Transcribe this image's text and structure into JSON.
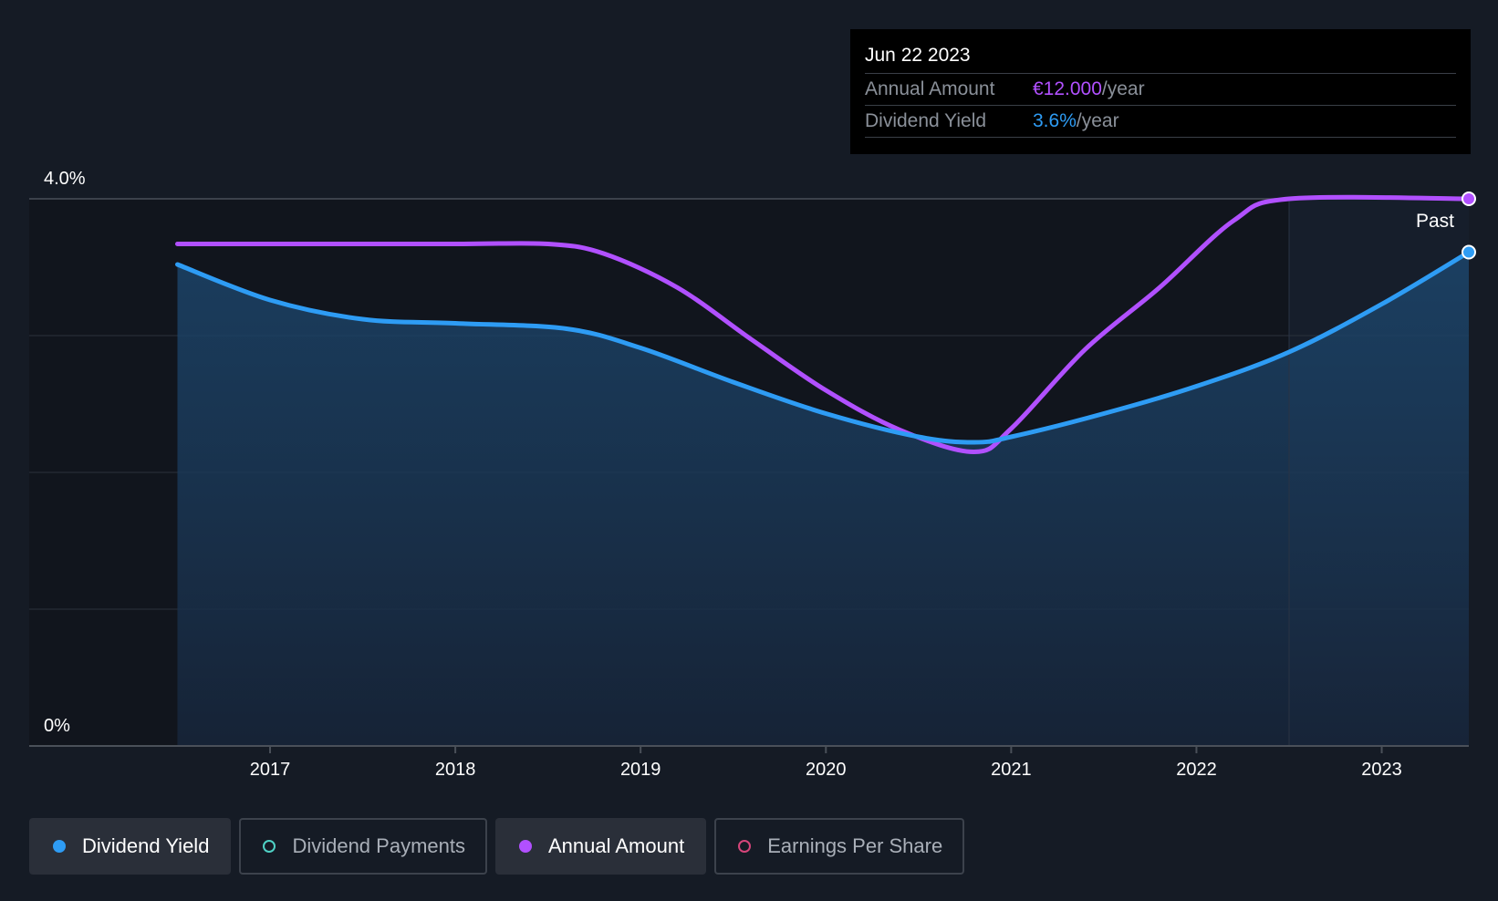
{
  "tooltip": {
    "date": "Jun 22 2023",
    "annual_label": "Annual Amount",
    "annual_value": "€12.000",
    "annual_unit": "/year",
    "yield_label": "Dividend Yield",
    "yield_value": "3.6%",
    "yield_unit": "/year"
  },
  "legend": [
    {
      "label": "Dividend Yield",
      "color": "#2e9cf4",
      "active": true,
      "filled": true
    },
    {
      "label": "Dividend Payments",
      "color": "#4fd1c5",
      "active": false,
      "filled": false
    },
    {
      "label": "Annual Amount",
      "color": "#b150ff",
      "active": true,
      "filled": true
    },
    {
      "label": "Earnings Per Share",
      "color": "#d6457a",
      "active": false,
      "filled": false
    }
  ],
  "chart_data": {
    "type": "line",
    "y_tick_labels": [
      "4.0%",
      "0%"
    ],
    "ylim": [
      0,
      4.0
    ],
    "xlim": [
      2015.7,
      2023.47
    ],
    "x_tick_labels": [
      "2017",
      "2018",
      "2019",
      "2020",
      "2021",
      "2022",
      "2023"
    ],
    "past_label": "Past",
    "grid": true,
    "series": [
      {
        "name": "Dividend Yield",
        "color": "#2e9cf4",
        "x": [
          2016.5,
          2017.0,
          2017.5,
          2018.0,
          2018.6,
          2019.0,
          2019.5,
          2020.0,
          2020.5,
          2020.8,
          2021.0,
          2021.5,
          2022.0,
          2022.5,
          2023.0,
          2023.47
        ],
        "y": [
          3.52,
          3.26,
          3.12,
          3.09,
          3.05,
          2.91,
          2.66,
          2.43,
          2.26,
          2.22,
          2.26,
          2.43,
          2.63,
          2.88,
          3.23,
          3.61
        ]
      },
      {
        "name": "Annual Amount",
        "color": "#b150ff",
        "x": [
          2016.5,
          2017.0,
          2018.0,
          2018.5,
          2018.8,
          2019.2,
          2019.6,
          2020.0,
          2020.4,
          2020.8,
          2021.0,
          2021.4,
          2021.8,
          2022.2,
          2022.5,
          2023.47
        ],
        "y": [
          3.67,
          3.67,
          3.67,
          3.67,
          3.6,
          3.35,
          2.97,
          2.6,
          2.31,
          2.15,
          2.32,
          2.9,
          3.35,
          3.84,
          4.0,
          4.0
        ]
      }
    ]
  }
}
